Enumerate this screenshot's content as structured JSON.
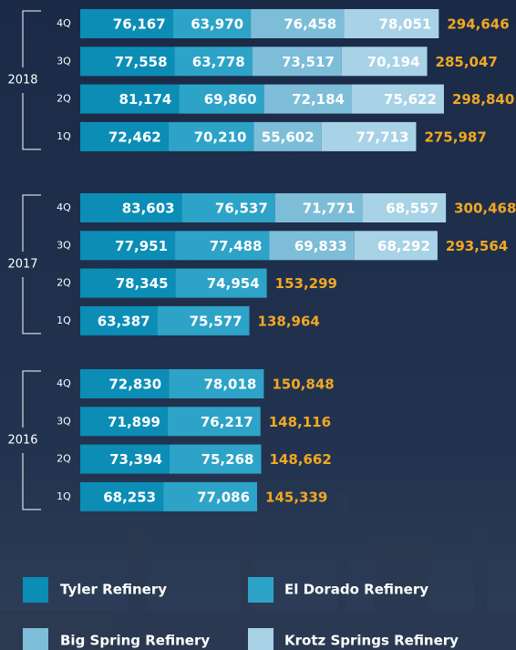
{
  "chart_data": {
    "type": "stacked-bar-horizontal",
    "groups": [
      "2018",
      "2017",
      "2016"
    ],
    "categories": [
      "4Q",
      "3Q",
      "2Q",
      "1Q",
      "4Q",
      "3Q",
      "2Q",
      "1Q",
      "4Q",
      "3Q",
      "2Q",
      "1Q"
    ],
    "series": [
      {
        "name": "Tyler Refinery",
        "color": "#0b8db6",
        "values": [
          76167,
          77558,
          81174,
          72462,
          83603,
          77951,
          78345,
          63387,
          72830,
          71899,
          73394,
          68253
        ],
        "value_labels": [
          "76,167",
          "77,558",
          "81,174",
          "72,462",
          "83,603",
          "77,951",
          "78,345",
          "63,387",
          "72,830",
          "71,899",
          "73,394",
          "68,253"
        ]
      },
      {
        "name": "El Dorado Refinery",
        "color": "#2da3c7",
        "values": [
          63970,
          63778,
          69860,
          70210,
          76537,
          77488,
          74954,
          75577,
          78018,
          76217,
          75268,
          77086
        ],
        "value_labels": [
          "63,970",
          "63,778",
          "69,860",
          "70,210",
          "76,537",
          "77,488",
          "74,954",
          "75,577",
          "78,018",
          "76,217",
          "75,268",
          "77,086"
        ]
      },
      {
        "name": "Big Spring Refinery",
        "color": "#7dbdd8",
        "values": [
          76458,
          73517,
          72184,
          55602,
          71771,
          69833,
          null,
          null,
          null,
          null,
          null,
          null
        ],
        "value_labels": [
          "76,458",
          "73,517",
          "72,184",
          "55,602",
          "71,771",
          "69,833",
          null,
          null,
          null,
          null,
          null,
          null
        ]
      },
      {
        "name": "Krotz Springs Refinery",
        "color": "#a8d2e6",
        "values": [
          78051,
          70194,
          75622,
          77713,
          68557,
          68292,
          null,
          null,
          null,
          null,
          null,
          null
        ],
        "value_labels": [
          "78,051",
          "70,194",
          "75,622",
          "77,713",
          "68,557",
          "68,292",
          null,
          null,
          null,
          null,
          null,
          null
        ]
      }
    ],
    "totals": {
      "color": "#f2a823",
      "values": [
        294646,
        285047,
        298840,
        275987,
        300468,
        293564,
        153299,
        138964,
        150848,
        148116,
        148662,
        145339
      ],
      "value_labels": [
        "294,646",
        "285,047",
        "298,840",
        "275,987",
        "300,468",
        "293,564",
        "153,299",
        "138,964",
        "150,848",
        "148,116",
        "148,662",
        "145,339"
      ]
    }
  }
}
